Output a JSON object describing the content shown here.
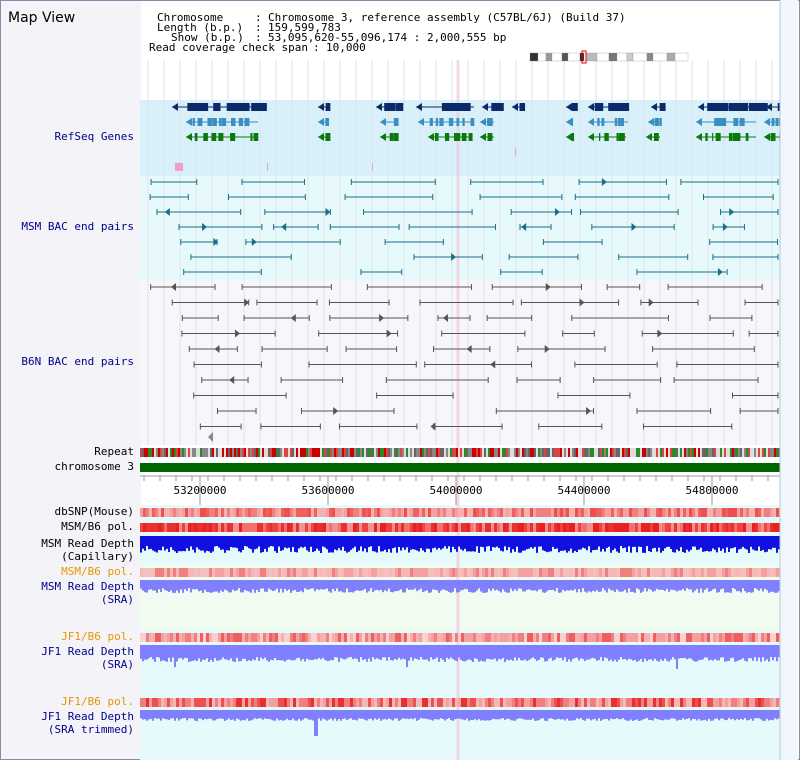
{
  "map_title": "Map View",
  "info": {
    "chromosome_label": "Chromosome",
    "chromosome_value": "Chromosome 3, reference assembly (C57BL/6J) (Build 37)",
    "length_label": "Length (b.p.)",
    "length_value": "159,599,783",
    "show_label": "Show (b.p.)",
    "show_value": "53,095,620-55,096,174 : 2,000,555 bp",
    "coverage_label": "Read coverage check span",
    "coverage_value": "10,000"
  },
  "tracks": {
    "refseq": "RefSeq Genes",
    "msm_bac": "MSM BAC end pairs",
    "b6n_bac": "B6N BAC end pairs",
    "repeat": "Repeat",
    "chromosome": "chromosome 3",
    "dbsnp": "dbSNP(Mouse)",
    "msm_b6_pol1": "MSM/B6 pol.",
    "msm_depth_cap_1": "MSM Read Depth",
    "msm_depth_cap_2": "(Capillary)",
    "msm_b6_pol2": "MSM/B6 pol.",
    "msm_depth_sra_1": "MSM Read Depth",
    "msm_depth_sra_2": "(SRA)",
    "jf1_b6_pol1": "JF1/B6 pol.",
    "jf1_depth_sra_1": "JF1 Read Depth",
    "jf1_depth_sra_2": "(SRA)",
    "jf1_b6_pol2": "JF1/B6 pol.",
    "jf1_depth_trim_1": "JF1 Read Depth",
    "jf1_depth_trim_2": "(SRA trimmed)"
  },
  "axis": {
    "ticks": [
      "53200000",
      "53600000",
      "54000000",
      "54400000",
      "54800000"
    ]
  },
  "colors": {
    "refseq_dark": "#0a2a6a",
    "refseq_mid": "#3a8ec0",
    "refseq_green": "#0a7a0a",
    "msm_bac": "#1a6e8a",
    "b6n_bac": "#555555",
    "chromosome": "#006600",
    "depth_blue": "#1010e0",
    "depth_light": "#8080ff"
  }
}
